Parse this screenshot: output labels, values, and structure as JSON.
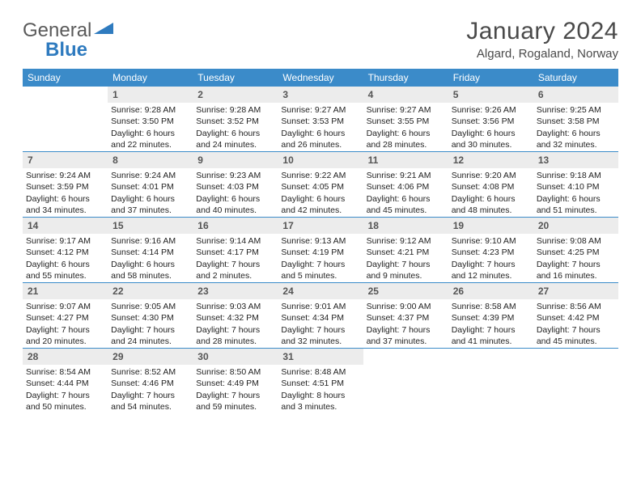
{
  "logo": {
    "text1": "General",
    "text2": "Blue"
  },
  "title": "January 2024",
  "location": "Algard, Rogaland, Norway",
  "colors": {
    "header_bg": "#3b8bc9",
    "daynum_bg": "#ececec",
    "logo_gray": "#5a5a5a",
    "logo_blue": "#2f7bbf"
  },
  "weekdays": [
    "Sunday",
    "Monday",
    "Tuesday",
    "Wednesday",
    "Thursday",
    "Friday",
    "Saturday"
  ],
  "weeks": [
    [
      null,
      {
        "n": "1",
        "sr": "9:28 AM",
        "ss": "3:50 PM",
        "dl": "6 hours and 22 minutes."
      },
      {
        "n": "2",
        "sr": "9:28 AM",
        "ss": "3:52 PM",
        "dl": "6 hours and 24 minutes."
      },
      {
        "n": "3",
        "sr": "9:27 AM",
        "ss": "3:53 PM",
        "dl": "6 hours and 26 minutes."
      },
      {
        "n": "4",
        "sr": "9:27 AM",
        "ss": "3:55 PM",
        "dl": "6 hours and 28 minutes."
      },
      {
        "n": "5",
        "sr": "9:26 AM",
        "ss": "3:56 PM",
        "dl": "6 hours and 30 minutes."
      },
      {
        "n": "6",
        "sr": "9:25 AM",
        "ss": "3:58 PM",
        "dl": "6 hours and 32 minutes."
      }
    ],
    [
      {
        "n": "7",
        "sr": "9:24 AM",
        "ss": "3:59 PM",
        "dl": "6 hours and 34 minutes."
      },
      {
        "n": "8",
        "sr": "9:24 AM",
        "ss": "4:01 PM",
        "dl": "6 hours and 37 minutes."
      },
      {
        "n": "9",
        "sr": "9:23 AM",
        "ss": "4:03 PM",
        "dl": "6 hours and 40 minutes."
      },
      {
        "n": "10",
        "sr": "9:22 AM",
        "ss": "4:05 PM",
        "dl": "6 hours and 42 minutes."
      },
      {
        "n": "11",
        "sr": "9:21 AM",
        "ss": "4:06 PM",
        "dl": "6 hours and 45 minutes."
      },
      {
        "n": "12",
        "sr": "9:20 AM",
        "ss": "4:08 PM",
        "dl": "6 hours and 48 minutes."
      },
      {
        "n": "13",
        "sr": "9:18 AM",
        "ss": "4:10 PM",
        "dl": "6 hours and 51 minutes."
      }
    ],
    [
      {
        "n": "14",
        "sr": "9:17 AM",
        "ss": "4:12 PM",
        "dl": "6 hours and 55 minutes."
      },
      {
        "n": "15",
        "sr": "9:16 AM",
        "ss": "4:14 PM",
        "dl": "6 hours and 58 minutes."
      },
      {
        "n": "16",
        "sr": "9:14 AM",
        "ss": "4:17 PM",
        "dl": "7 hours and 2 minutes."
      },
      {
        "n": "17",
        "sr": "9:13 AM",
        "ss": "4:19 PM",
        "dl": "7 hours and 5 minutes."
      },
      {
        "n": "18",
        "sr": "9:12 AM",
        "ss": "4:21 PM",
        "dl": "7 hours and 9 minutes."
      },
      {
        "n": "19",
        "sr": "9:10 AM",
        "ss": "4:23 PM",
        "dl": "7 hours and 12 minutes."
      },
      {
        "n": "20",
        "sr": "9:08 AM",
        "ss": "4:25 PM",
        "dl": "7 hours and 16 minutes."
      }
    ],
    [
      {
        "n": "21",
        "sr": "9:07 AM",
        "ss": "4:27 PM",
        "dl": "7 hours and 20 minutes."
      },
      {
        "n": "22",
        "sr": "9:05 AM",
        "ss": "4:30 PM",
        "dl": "7 hours and 24 minutes."
      },
      {
        "n": "23",
        "sr": "9:03 AM",
        "ss": "4:32 PM",
        "dl": "7 hours and 28 minutes."
      },
      {
        "n": "24",
        "sr": "9:01 AM",
        "ss": "4:34 PM",
        "dl": "7 hours and 32 minutes."
      },
      {
        "n": "25",
        "sr": "9:00 AM",
        "ss": "4:37 PM",
        "dl": "7 hours and 37 minutes."
      },
      {
        "n": "26",
        "sr": "8:58 AM",
        "ss": "4:39 PM",
        "dl": "7 hours and 41 minutes."
      },
      {
        "n": "27",
        "sr": "8:56 AM",
        "ss": "4:42 PM",
        "dl": "7 hours and 45 minutes."
      }
    ],
    [
      {
        "n": "28",
        "sr": "8:54 AM",
        "ss": "4:44 PM",
        "dl": "7 hours and 50 minutes."
      },
      {
        "n": "29",
        "sr": "8:52 AM",
        "ss": "4:46 PM",
        "dl": "7 hours and 54 minutes."
      },
      {
        "n": "30",
        "sr": "8:50 AM",
        "ss": "4:49 PM",
        "dl": "7 hours and 59 minutes."
      },
      {
        "n": "31",
        "sr": "8:48 AM",
        "ss": "4:51 PM",
        "dl": "8 hours and 3 minutes."
      },
      null,
      null,
      null
    ]
  ],
  "labels": {
    "sunrise": "Sunrise:",
    "sunset": "Sunset:",
    "daylight": "Daylight:"
  }
}
